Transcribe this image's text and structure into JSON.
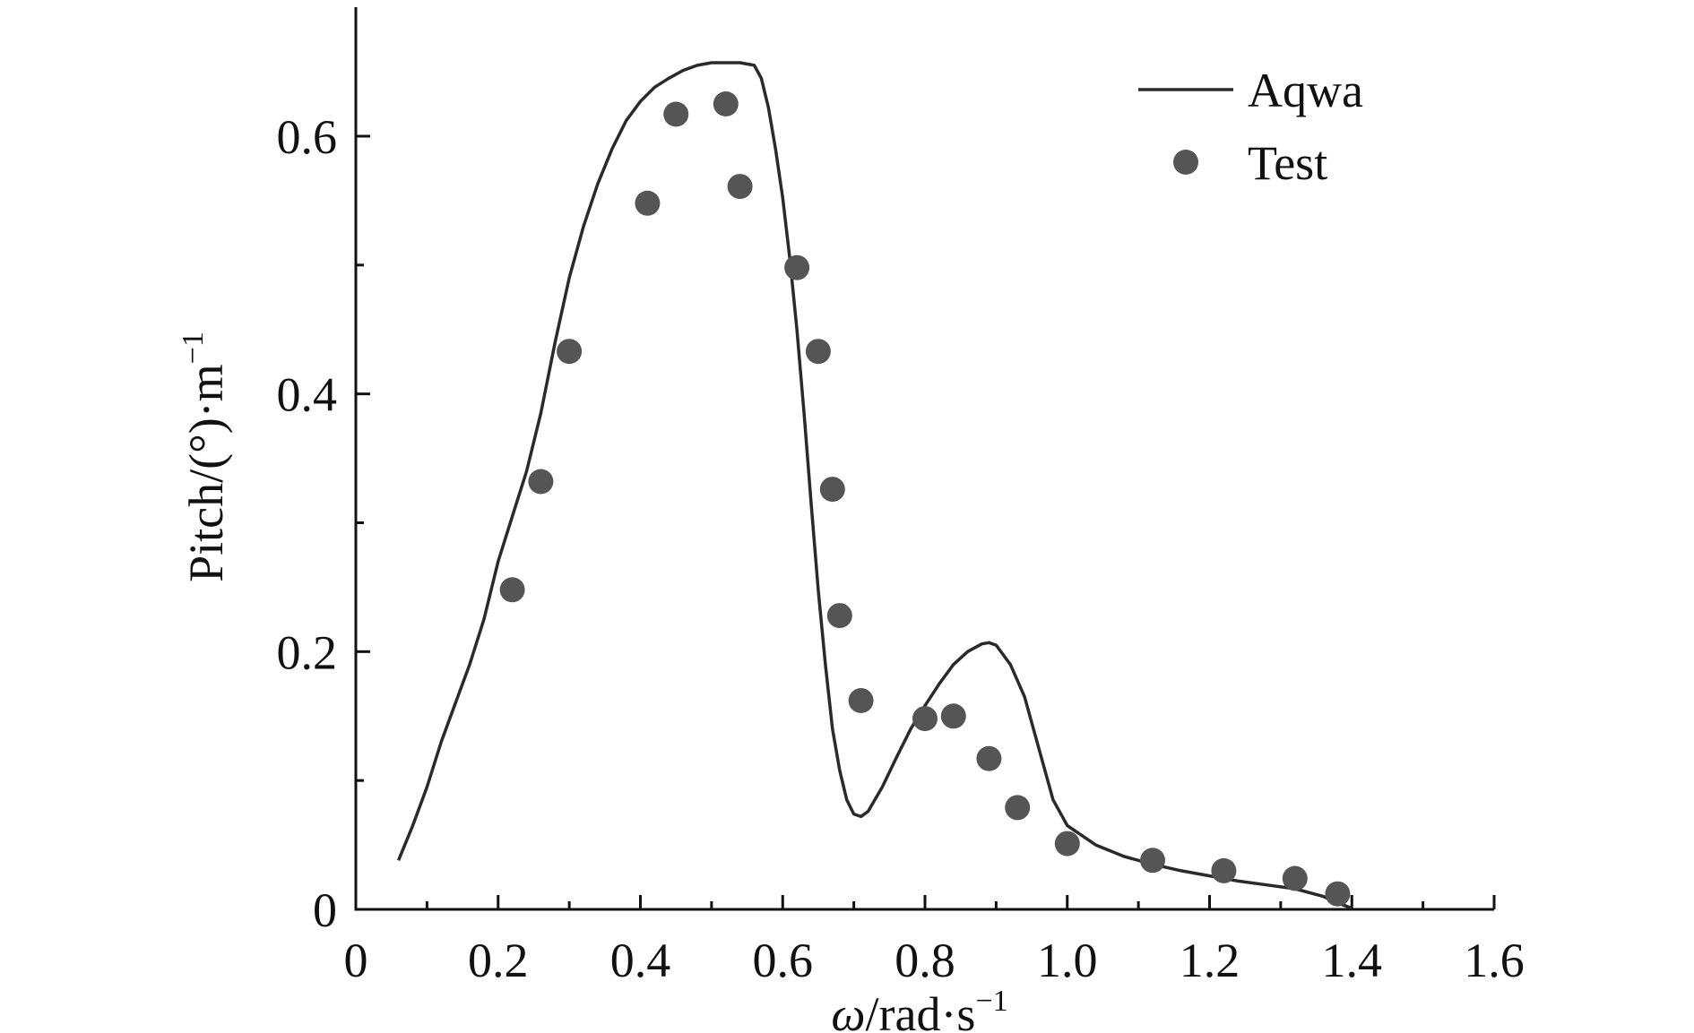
{
  "chart_data": {
    "type": "line",
    "title": "",
    "xlabel": {
      "prefix": "ω",
      "main": "/rad·s",
      "sup": "−1"
    },
    "ylabel": {
      "main": "Pitch/(°)·m",
      "sup": "−1"
    },
    "xlim": [
      0,
      1.6
    ],
    "ylim": [
      0,
      0.7
    ],
    "x_major_ticks": [
      0,
      0.2,
      0.4,
      0.6,
      0.8,
      1.0,
      1.2,
      1.4,
      1.6
    ],
    "x_tick_labels": [
      "0",
      "0.2",
      "0.4",
      "0.6",
      "0.8",
      "1.0",
      "1.2",
      "1.4",
      "1.6"
    ],
    "x_minor_ticks": [
      0.1,
      0.3,
      0.5,
      0.7,
      0.9,
      1.1,
      1.3,
      1.5
    ],
    "y_major_ticks": [
      0,
      0.2,
      0.4,
      0.6
    ],
    "y_tick_labels": [
      "0",
      "0.2",
      "0.4",
      "0.6"
    ],
    "y_minor_ticks": [
      0.1,
      0.3,
      0.5
    ],
    "legend": {
      "position": "top-right",
      "entries": [
        "Aqwa",
        "Test"
      ]
    },
    "series": [
      {
        "name": "Aqwa",
        "kind": "line",
        "color": "#2a2a2a",
        "x": [
          0.06,
          0.08,
          0.1,
          0.12,
          0.14,
          0.16,
          0.18,
          0.2,
          0.22,
          0.24,
          0.26,
          0.28,
          0.3,
          0.32,
          0.34,
          0.36,
          0.38,
          0.4,
          0.42,
          0.44,
          0.46,
          0.48,
          0.5,
          0.52,
          0.54,
          0.56,
          0.57,
          0.58,
          0.59,
          0.6,
          0.61,
          0.62,
          0.63,
          0.64,
          0.65,
          0.66,
          0.67,
          0.68,
          0.69,
          0.7,
          0.71,
          0.72,
          0.74,
          0.76,
          0.78,
          0.8,
          0.82,
          0.84,
          0.86,
          0.88,
          0.89,
          0.9,
          0.92,
          0.94,
          0.96,
          0.98,
          1.0,
          1.04,
          1.08,
          1.12,
          1.16,
          1.2,
          1.24,
          1.28,
          1.32,
          1.36,
          1.38,
          1.4
        ],
        "y": [
          0.038,
          0.065,
          0.095,
          0.13,
          0.16,
          0.19,
          0.225,
          0.27,
          0.305,
          0.34,
          0.385,
          0.44,
          0.49,
          0.53,
          0.563,
          0.59,
          0.612,
          0.627,
          0.638,
          0.645,
          0.651,
          0.655,
          0.657,
          0.657,
          0.657,
          0.655,
          0.645,
          0.622,
          0.59,
          0.552,
          0.505,
          0.45,
          0.385,
          0.315,
          0.248,
          0.19,
          0.14,
          0.108,
          0.085,
          0.074,
          0.072,
          0.076,
          0.095,
          0.118,
          0.14,
          0.158,
          0.175,
          0.19,
          0.2,
          0.206,
          0.207,
          0.205,
          0.19,
          0.165,
          0.125,
          0.085,
          0.065,
          0.05,
          0.041,
          0.035,
          0.03,
          0.026,
          0.022,
          0.019,
          0.016,
          0.01,
          0.005,
          0.001
        ]
      },
      {
        "name": "Test",
        "kind": "scatter",
        "color": "#555555",
        "x": [
          0.22,
          0.26,
          0.3,
          0.41,
          0.45,
          0.52,
          0.54,
          0.62,
          0.65,
          0.67,
          0.68,
          0.71,
          0.8,
          0.84,
          0.89,
          0.93,
          1.0,
          1.12,
          1.22,
          1.32,
          1.38
        ],
        "y": [
          0.248,
          0.332,
          0.433,
          0.548,
          0.617,
          0.625,
          0.561,
          0.498,
          0.433,
          0.326,
          0.228,
          0.162,
          0.148,
          0.15,
          0.117,
          0.079,
          0.051,
          0.038,
          0.03,
          0.024,
          0.012
        ]
      }
    ]
  }
}
